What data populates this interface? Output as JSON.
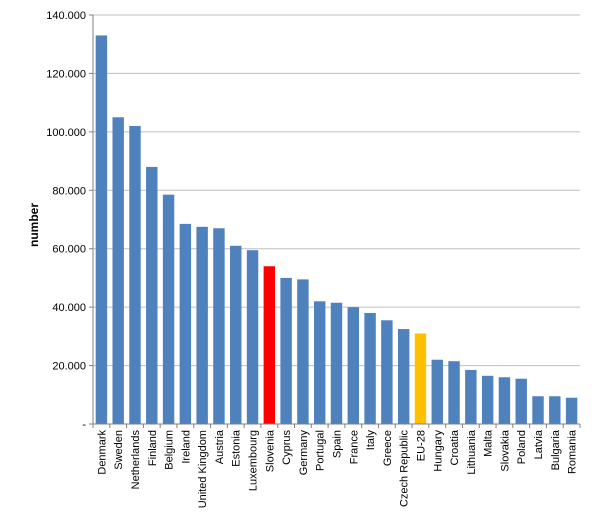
{
  "chart_data": {
    "type": "bar",
    "title": "",
    "xlabel": "",
    "ylabel": "number",
    "ylim": [
      0,
      140000
    ],
    "yticks": [
      0,
      20000,
      40000,
      60000,
      80000,
      100000,
      120000,
      140000
    ],
    "ytick_labels": [
      "-",
      "20.000",
      "40.000",
      "60.000",
      "80.000",
      "100.000",
      "120.000",
      "140.000"
    ],
    "grid": true,
    "legend": "none",
    "categories": [
      "Denmark",
      "Sweden",
      "Netherlands",
      "Finland",
      "Belgium",
      "Ireland",
      "United Kingdom",
      "Austria",
      "Estonia",
      "Luxembourg",
      "Slovenia",
      "Cyprus",
      "Germany",
      "Portugal",
      "Spain",
      "France",
      "Italy",
      "Greece",
      "Czech Republic",
      "EU-28",
      "Hungary",
      "Croatia",
      "Lithuania",
      "Malta",
      "Slovakia",
      "Poland",
      "Latvia",
      "Bulgaria",
      "Romania"
    ],
    "values": [
      133000,
      105000,
      102000,
      88000,
      78500,
      68500,
      67500,
      67000,
      61000,
      59500,
      54000,
      50000,
      49500,
      42000,
      41500,
      40000,
      38000,
      35500,
      32500,
      31000,
      22000,
      21500,
      18500,
      16500,
      16000,
      15500,
      9500,
      9500,
      9000
    ],
    "colors": {
      "default": "#4F81BD",
      "Slovenia": "#FF0000",
      "EU-28": "#FFC000",
      "grid": "#BFBFBF",
      "axis": "#808080"
    }
  }
}
